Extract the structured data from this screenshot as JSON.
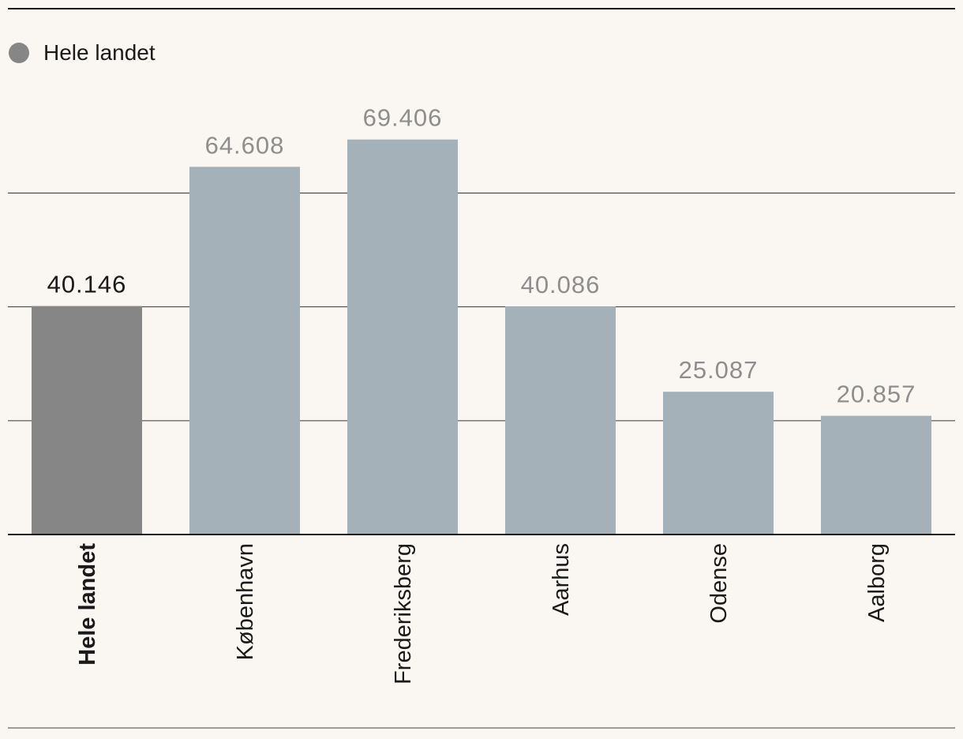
{
  "legend": {
    "label": "Hele landet",
    "color": "#868686"
  },
  "colors": {
    "highlight_bar": "#868686",
    "other_bar": "#a4b1b8",
    "highlight_label": "#1a1a1a",
    "other_label": "#8e8e8e",
    "grid": "#333333",
    "background": "#faf6f1"
  },
  "chart_data": {
    "type": "bar",
    "categories": [
      "Hele landet",
      "København",
      "Frederiksberg",
      "Aarhus",
      "Odense",
      "Aalborg"
    ],
    "values": [
      40146,
      64608,
      69406,
      40086,
      25087,
      20857
    ],
    "value_labels": [
      "40.146",
      "64.608",
      "69.406",
      "40.086",
      "25.087",
      "20.857"
    ],
    "highlight_index": 0,
    "ylim": [
      0,
      80000
    ],
    "gridlines": [
      20000,
      40000,
      60000
    ],
    "grid": true,
    "legend_position": "top-left"
  }
}
